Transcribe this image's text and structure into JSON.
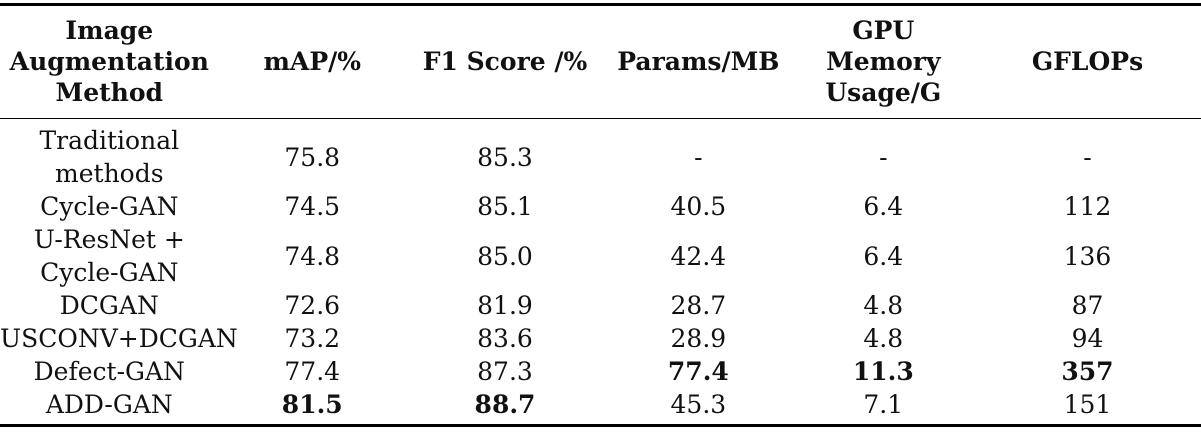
{
  "table": {
    "headers": [
      "Image\nAugmentation\nMethod",
      "mAP/%",
      "F1 Score /%",
      "Params/MB",
      "GPU\nMemory\nUsage/G",
      "GFLOPs"
    ],
    "rows": [
      {
        "cells": [
          "Traditional\nmethods",
          "75.8",
          "85.3",
          "-",
          "-",
          "-"
        ]
      },
      {
        "cells": [
          "Cycle-GAN",
          "74.5",
          "85.1",
          "40.5",
          "6.4",
          "112"
        ]
      },
      {
        "cells": [
          "U-ResNet +\nCycle-GAN",
          "74.8",
          "85.0",
          "42.4",
          "6.4",
          "136"
        ]
      },
      {
        "cells": [
          "DCGAN",
          "72.6",
          "81.9",
          "28.7",
          "4.8",
          "87"
        ]
      },
      {
        "cells": [
          "USCONV+DCGAN",
          "73.2",
          "83.6",
          "28.9",
          "4.8",
          "94"
        ]
      },
      {
        "cells": [
          "Defect-GAN",
          "77.4",
          "87.3",
          "77.4",
          "11.3",
          "357"
        ]
      },
      {
        "cells": [
          "ADD-GAN",
          "81.5",
          "88.7",
          "45.3",
          "7.1",
          "151"
        ]
      }
    ],
    "bold_values": {
      "defect_gan": [
        "params",
        "gpu_memory",
        "gflops"
      ],
      "add_gan": [
        "map",
        "f1_score"
      ]
    },
    "colors": {
      "text": "#111111",
      "rule": "#000000",
      "background": "#ffffff"
    }
  }
}
